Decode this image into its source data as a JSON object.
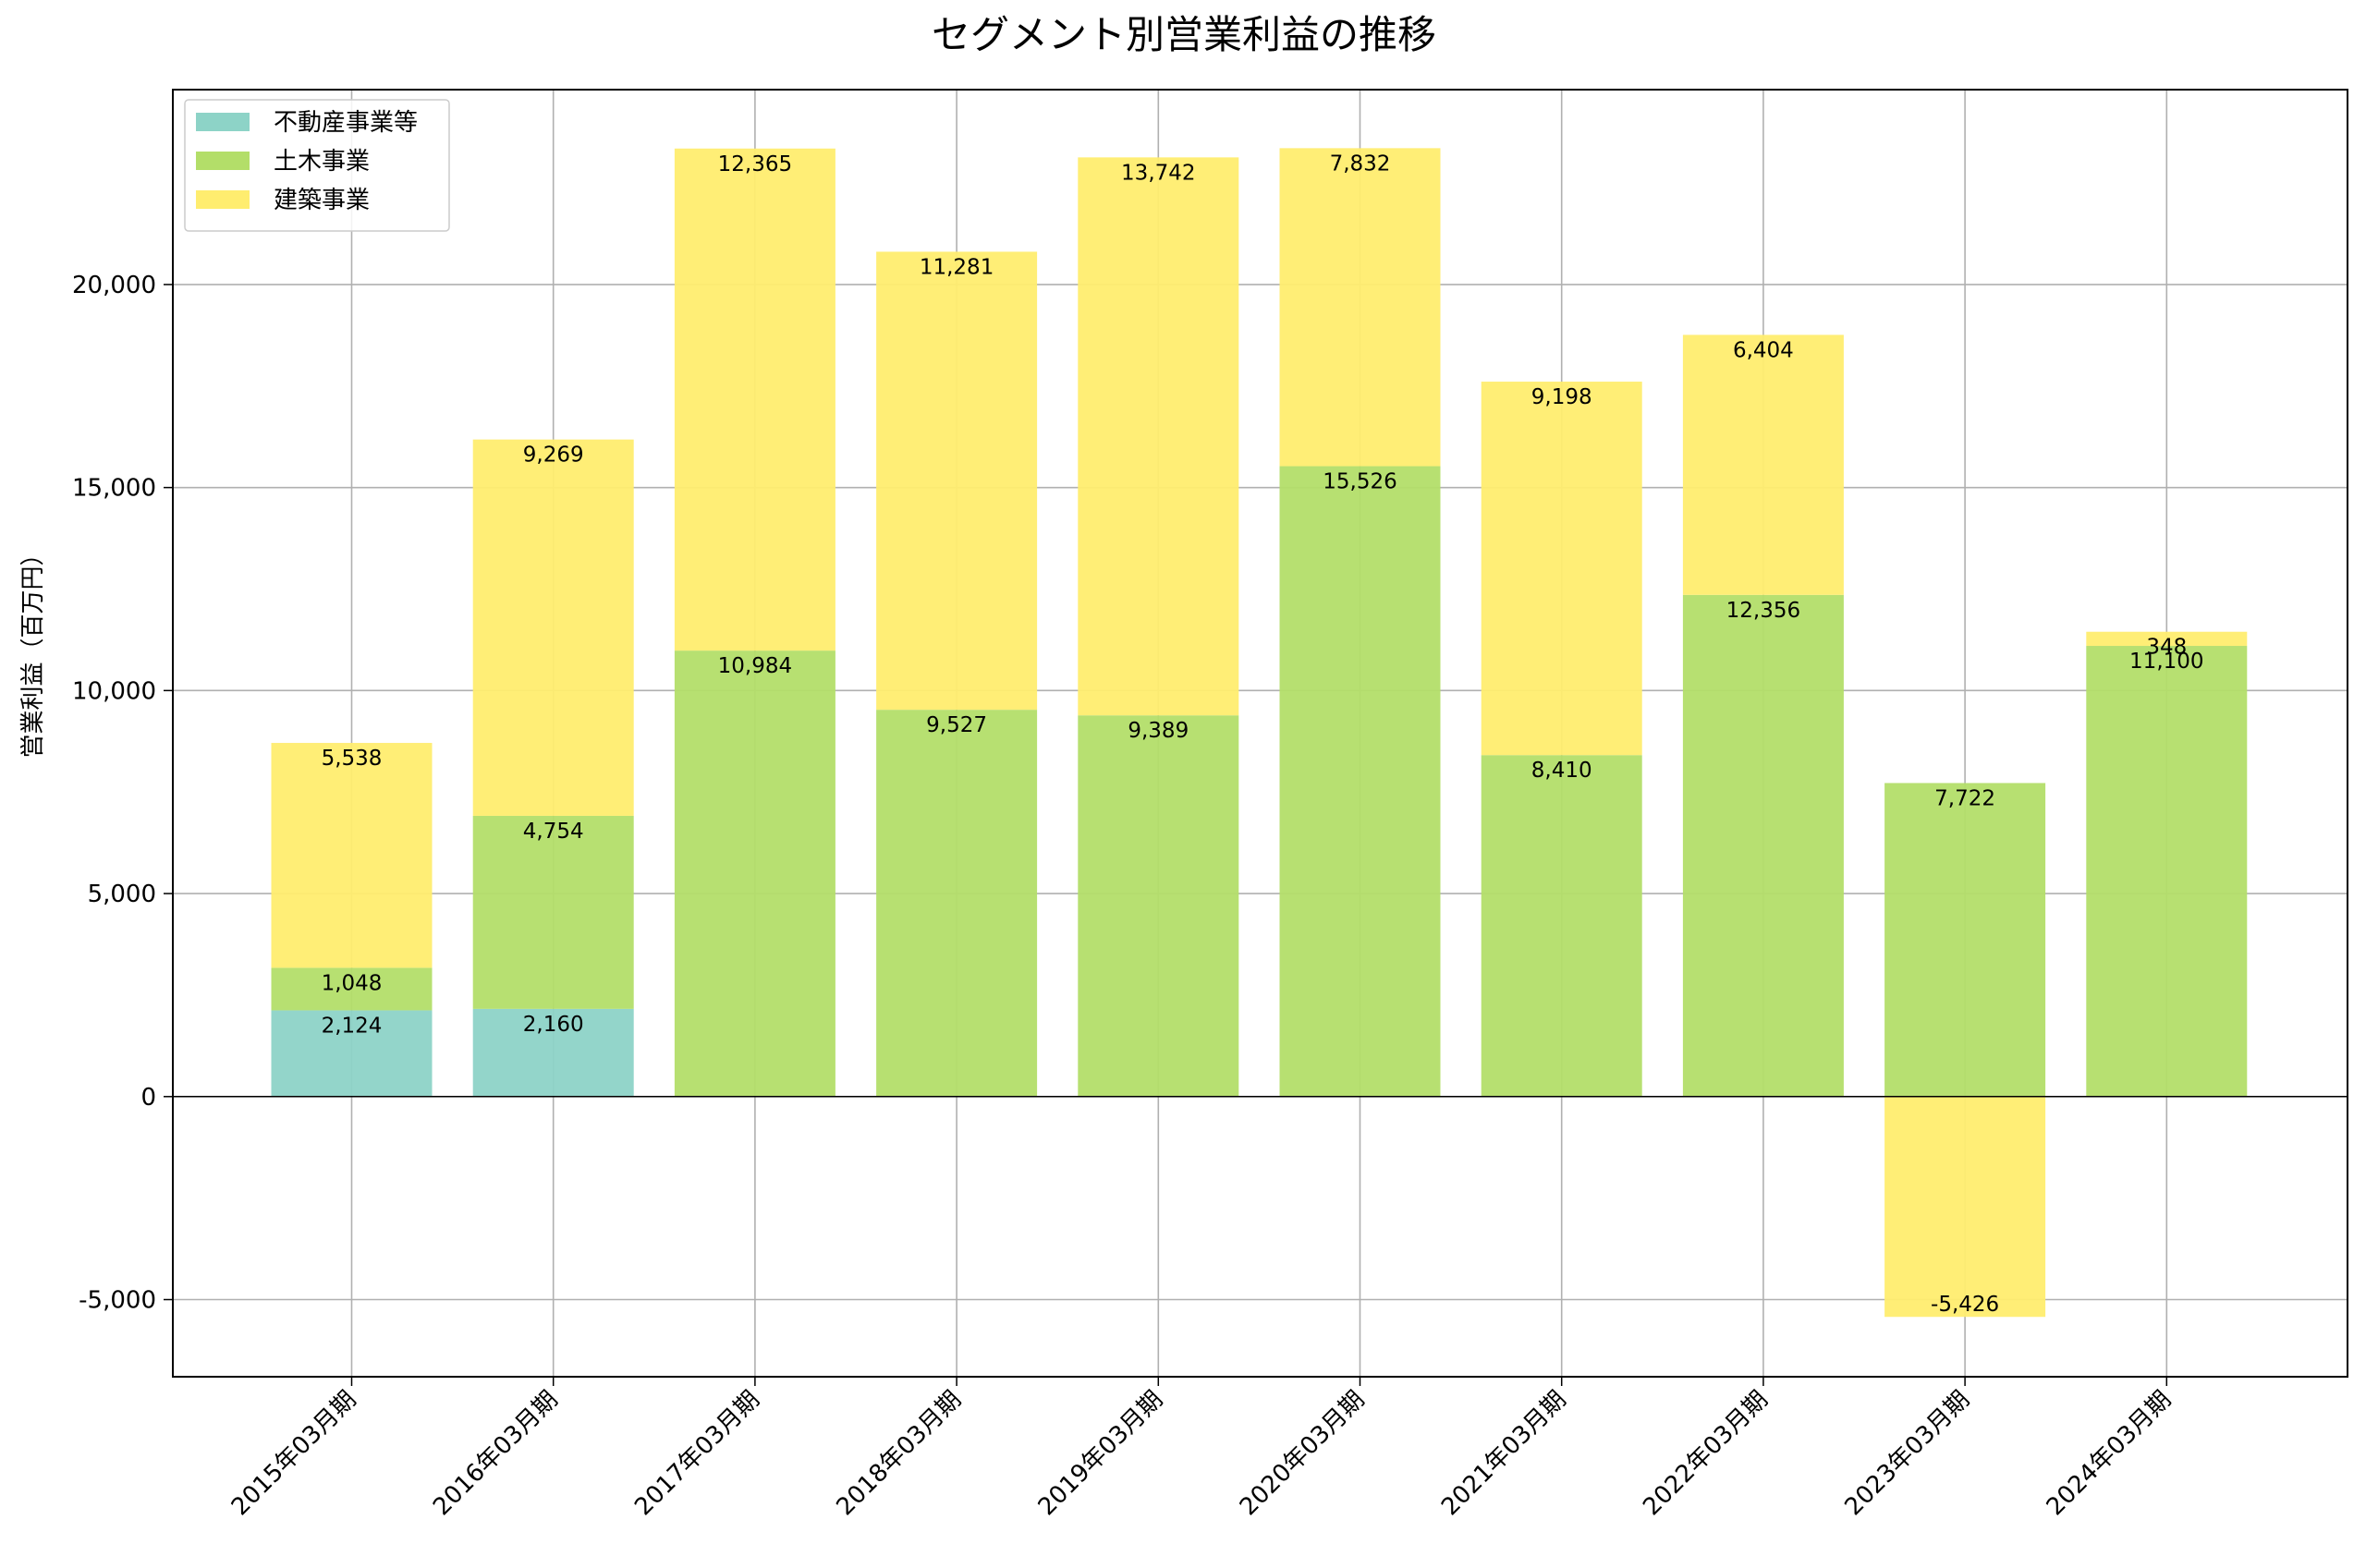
{
  "chart_data": {
    "type": "bar",
    "stacked": true,
    "title": "セグメント別営業利益の推移",
    "xlabel": "",
    "ylabel": "営業利益（百万円）",
    "ylim": [
      -6900,
      24800
    ],
    "yticks": [
      -5000,
      0,
      5000,
      10000,
      15000,
      20000
    ],
    "ytick_labels": [
      "-5,000",
      "0",
      "5,000",
      "10,000",
      "15,000",
      "20,000"
    ],
    "grid": true,
    "legend_position": "top-left",
    "categories": [
      "2015年03月期",
      "2016年03月期",
      "2017年03月期",
      "2018年03月期",
      "2019年03月期",
      "2020年03月期",
      "2021年03月期",
      "2022年03月期",
      "2023年03月期",
      "2024年03月期"
    ],
    "series": [
      {
        "name": "不動産事業等",
        "color": "#8dd3c7",
        "values": [
          2124,
          2160,
          null,
          null,
          null,
          null,
          null,
          null,
          null,
          null
        ],
        "labels": [
          "2,124",
          "2,160",
          "",
          "",
          "",
          "",
          "",
          "",
          "",
          ""
        ]
      },
      {
        "name": "土木事業",
        "color": "#b3de69",
        "values": [
          1048,
          4754,
          10984,
          9527,
          9389,
          15526,
          8410,
          12356,
          7722,
          11100
        ],
        "labels": [
          "1,048",
          "4,754",
          "10,984",
          "9,527",
          "9,389",
          "15,526",
          "8,410",
          "12,356",
          "7,722",
          "11,100"
        ]
      },
      {
        "name": "建築事業",
        "color": "#ffed6f",
        "values": [
          5538,
          9269,
          12365,
          11281,
          13742,
          7832,
          9198,
          6404,
          -5426,
          348
        ],
        "labels": [
          "5,538",
          "9,269",
          "12,365",
          "11,281",
          "13,742",
          "7,832",
          "9,198",
          "6,404",
          "-5,426",
          "348"
        ]
      }
    ]
  }
}
